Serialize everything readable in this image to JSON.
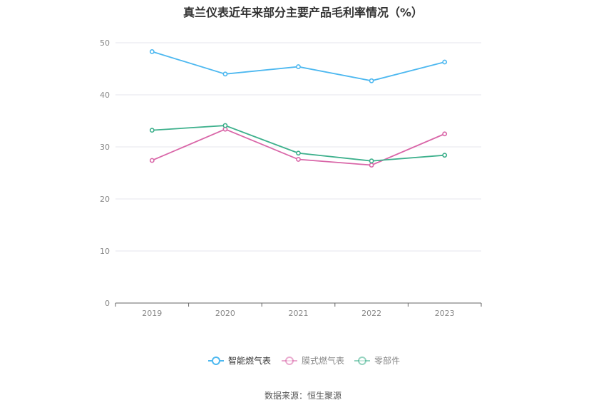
{
  "chart_data": {
    "type": "line",
    "title": "真兰仪表近年来部分主要产品毛利率情况（%）",
    "categories": [
      "2019",
      "2020",
      "2021",
      "2022",
      "2023"
    ],
    "ylim": [
      0,
      50
    ],
    "yticks": [
      0,
      10,
      20,
      30,
      40,
      50
    ],
    "grid": true,
    "legend_position": "bottom",
    "series": [
      {
        "name": "智能燃气表",
        "color": "#4db8f0",
        "values": [
          48.3,
          44.0,
          45.4,
          42.7,
          46.3
        ]
      },
      {
        "name": "膜式燃气表",
        "color": "#d966a8",
        "values": [
          27.4,
          33.4,
          27.6,
          26.5,
          32.5
        ]
      },
      {
        "name": "零部件",
        "color": "#3db08c",
        "values": [
          33.2,
          34.1,
          28.8,
          27.3,
          28.4
        ]
      }
    ]
  },
  "source": "数据来源：恒生聚源"
}
